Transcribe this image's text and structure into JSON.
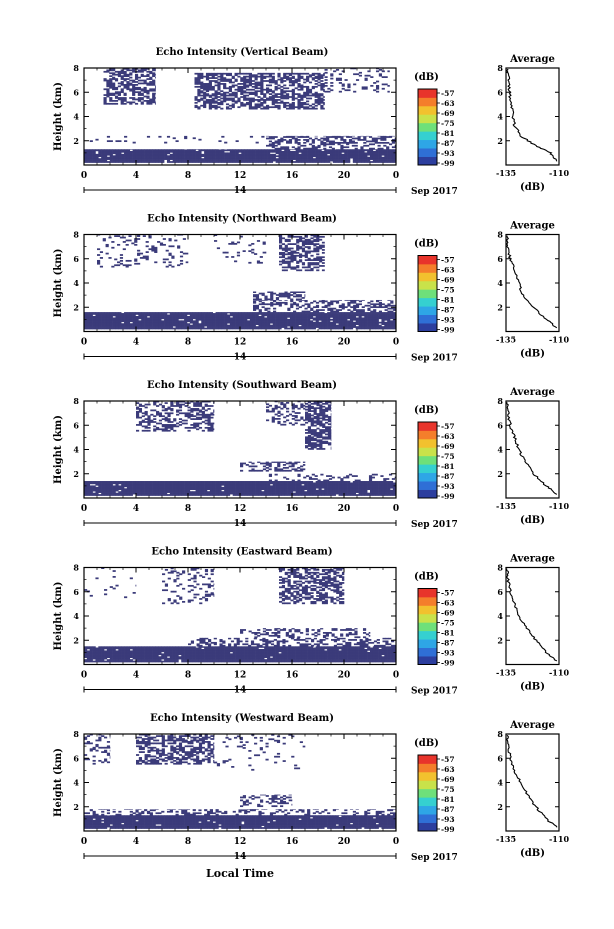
{
  "figure": {
    "x_axis_title": "Local Time",
    "date_label": "Sep 2017",
    "day_label": "14",
    "y_axis_title": "Height (km)",
    "avg_title": "Average",
    "avg_xlabel": "(dB)",
    "colorbar_unit": "(dB)"
  },
  "colors": {
    "echo": "#3b3b7a",
    "colormap": [
      "#2c3e9e",
      "#2f6fd6",
      "#2ea6e6",
      "#35d0d0",
      "#6ee07a",
      "#c9e24a",
      "#f2c12e",
      "#f47e2b",
      "#e8342b"
    ]
  },
  "chart_data": [
    {
      "type": "heatmap",
      "title": "Echo Intensity (Vertical Beam)",
      "xlabel": "",
      "ylabel": "Height (km)",
      "xlim": [
        0,
        24
      ],
      "ylim": [
        0,
        8
      ],
      "xticks": [
        "0",
        "4",
        "8",
        "12",
        "16",
        "20",
        "0"
      ],
      "yticks": [
        "2",
        "4",
        "6",
        "8"
      ],
      "colorbar": {
        "label": "(dB)",
        "ticks": [
          "-57",
          "-63",
          "-69",
          "-75",
          "-81",
          "-87",
          "-93",
          "-99"
        ]
      },
      "average": {
        "title": "Average",
        "xlabel": "(dB)",
        "xlim": [
          -135,
          -110
        ],
        "xticks": [
          "-135",
          "-110"
        ],
        "ylim": [
          0,
          8
        ],
        "yticks": [
          "2",
          "4",
          "6",
          "8"
        ],
        "profile": [
          [
            -111,
            0.3
          ],
          [
            -114,
            1.0
          ],
          [
            -121,
            1.6
          ],
          [
            -128,
            2.4
          ],
          [
            -131,
            3.3
          ],
          [
            -132,
            4.5
          ],
          [
            -133,
            5.5
          ],
          [
            -133.5,
            6.5
          ],
          [
            -134,
            7.5
          ],
          [
            -134.5,
            7.9
          ]
        ]
      },
      "echo_regions": [
        {
          "height": [
            0.2,
            1.3
          ],
          "time": [
            0,
            24
          ],
          "density": 0.97
        },
        {
          "height": [
            1.3,
            2.4
          ],
          "time": [
            14,
            24
          ],
          "density": 0.45
        },
        {
          "height": [
            1.8,
            2.4
          ],
          "time": [
            0,
            14
          ],
          "density": 0.08
        },
        {
          "height": [
            5.0,
            8.0
          ],
          "time": [
            1.5,
            5.5
          ],
          "density": 0.55
        },
        {
          "height": [
            4.6,
            7.6
          ],
          "time": [
            8.5,
            18.5
          ],
          "density": 0.6
        },
        {
          "height": [
            6.0,
            8.0
          ],
          "time": [
            18.5,
            23.5
          ],
          "density": 0.2
        }
      ]
    },
    {
      "type": "heatmap",
      "title": "Echo Intensity (Northward Beam)",
      "xlabel": "",
      "ylabel": "Height (km)",
      "xlim": [
        0,
        24
      ],
      "ylim": [
        0,
        8
      ],
      "xticks": [
        "0",
        "4",
        "8",
        "12",
        "16",
        "20",
        "0"
      ],
      "yticks": [
        "2",
        "4",
        "6",
        "8"
      ],
      "colorbar": {
        "label": "(dB)",
        "ticks": [
          "-57",
          "-63",
          "-69",
          "-75",
          "-81",
          "-87",
          "-93",
          "-99"
        ]
      },
      "average": {
        "title": "Average",
        "xlabel": "(dB)",
        "xlim": [
          -135,
          -110
        ],
        "xticks": [
          "-135",
          "-110"
        ],
        "ylim": [
          0,
          8
        ],
        "yticks": [
          "2",
          "4",
          "6",
          "8"
        ],
        "profile": [
          [
            -111,
            0.3
          ],
          [
            -116,
            1.0
          ],
          [
            -122,
            2.0
          ],
          [
            -127,
            3.0
          ],
          [
            -129,
            4.0
          ],
          [
            -131,
            5.0
          ],
          [
            -133,
            6.0
          ],
          [
            -134,
            7.0
          ],
          [
            -134.5,
            7.9
          ]
        ]
      },
      "echo_regions": [
        {
          "height": [
            0.2,
            1.6
          ],
          "time": [
            0,
            24
          ],
          "density": 0.97
        },
        {
          "height": [
            1.6,
            2.6
          ],
          "time": [
            13,
            24
          ],
          "density": 0.4
        },
        {
          "height": [
            2.6,
            3.3
          ],
          "time": [
            13,
            17
          ],
          "density": 0.55
        },
        {
          "height": [
            5.3,
            8.0
          ],
          "time": [
            1,
            8
          ],
          "density": 0.15
        },
        {
          "height": [
            5.0,
            8.0
          ],
          "time": [
            15,
            18.5
          ],
          "density": 0.5
        },
        {
          "height": [
            5.5,
            8.0
          ],
          "time": [
            10,
            14
          ],
          "density": 0.1
        }
      ]
    },
    {
      "type": "heatmap",
      "title": "Echo Intensity (Southward Beam)",
      "xlabel": "",
      "ylabel": "Height (km)",
      "xlim": [
        0,
        24
      ],
      "ylim": [
        0,
        8
      ],
      "xticks": [
        "0",
        "4",
        "8",
        "12",
        "16",
        "20",
        "0"
      ],
      "yticks": [
        "2",
        "4",
        "6",
        "8"
      ],
      "colorbar": {
        "label": "(dB)",
        "ticks": [
          "-57",
          "-63",
          "-69",
          "-75",
          "-81",
          "-87",
          "-93",
          "-99"
        ]
      },
      "average": {
        "title": "Average",
        "xlabel": "(dB)",
        "xlim": [
          -135,
          -110
        ],
        "xticks": [
          "-135",
          "-110"
        ],
        "ylim": [
          0,
          8
        ],
        "yticks": [
          "2",
          "4",
          "6",
          "8"
        ],
        "profile": [
          [
            -111,
            0.3
          ],
          [
            -116,
            1.0
          ],
          [
            -122,
            2.0
          ],
          [
            -126,
            3.0
          ],
          [
            -129,
            4.0
          ],
          [
            -131,
            5.0
          ],
          [
            -133,
            6.0
          ],
          [
            -134,
            7.0
          ],
          [
            -134.5,
            7.9
          ]
        ]
      },
      "echo_regions": [
        {
          "height": [
            0.2,
            1.4
          ],
          "time": [
            0,
            24
          ],
          "density": 0.97
        },
        {
          "height": [
            1.4,
            2.0
          ],
          "time": [
            14,
            24
          ],
          "density": 0.25
        },
        {
          "height": [
            2.2,
            3.0
          ],
          "time": [
            12,
            17
          ],
          "density": 0.45
        },
        {
          "height": [
            5.5,
            8.0
          ],
          "time": [
            4,
            10
          ],
          "density": 0.45
        },
        {
          "height": [
            4.0,
            8.0
          ],
          "time": [
            17,
            19
          ],
          "density": 0.7
        },
        {
          "height": [
            6.0,
            8.0
          ],
          "time": [
            14,
            17
          ],
          "density": 0.35
        }
      ]
    },
    {
      "type": "heatmap",
      "title": "Echo Intensity (Eastward Beam)",
      "xlabel": "",
      "ylabel": "Height (km)",
      "xlim": [
        0,
        24
      ],
      "ylim": [
        0,
        8
      ],
      "xticks": [
        "0",
        "4",
        "8",
        "12",
        "16",
        "20",
        "0"
      ],
      "yticks": [
        "2",
        "4",
        "6",
        "8"
      ],
      "colorbar": {
        "label": "(dB)",
        "ticks": [
          "-57",
          "-63",
          "-69",
          "-75",
          "-81",
          "-87",
          "-93",
          "-99"
        ]
      },
      "average": {
        "title": "Average",
        "xlabel": "(dB)",
        "xlim": [
          -135,
          -110
        ],
        "xticks": [
          "-135",
          "-110"
        ],
        "ylim": [
          0,
          8
        ],
        "yticks": [
          "2",
          "4",
          "6",
          "8"
        ],
        "profile": [
          [
            -111,
            0.3
          ],
          [
            -116,
            1.0
          ],
          [
            -121,
            2.0
          ],
          [
            -125,
            3.0
          ],
          [
            -129,
            4.0
          ],
          [
            -131,
            5.0
          ],
          [
            -133,
            6.0
          ],
          [
            -134,
            7.0
          ],
          [
            -134.5,
            7.9
          ]
        ]
      },
      "echo_regions": [
        {
          "height": [
            0.2,
            1.5
          ],
          "time": [
            0,
            24
          ],
          "density": 0.97
        },
        {
          "height": [
            1.5,
            2.2
          ],
          "time": [
            8,
            24
          ],
          "density": 0.4
        },
        {
          "height": [
            2.2,
            3.0
          ],
          "time": [
            12,
            22
          ],
          "density": 0.35
        },
        {
          "height": [
            5.0,
            8.0
          ],
          "time": [
            15,
            20
          ],
          "density": 0.55
        },
        {
          "height": [
            5.0,
            8.0
          ],
          "time": [
            6,
            10
          ],
          "density": 0.2
        },
        {
          "height": [
            5.5,
            8.0
          ],
          "time": [
            0,
            4
          ],
          "density": 0.05
        }
      ]
    },
    {
      "type": "heatmap",
      "title": "Echo Intensity (Westward Beam)",
      "xlabel": "Local Time",
      "ylabel": "Height (km)",
      "xlim": [
        0,
        24
      ],
      "ylim": [
        0,
        8
      ],
      "xticks": [
        "0",
        "4",
        "8",
        "12",
        "16",
        "20",
        "0"
      ],
      "yticks": [
        "2",
        "4",
        "6",
        "8"
      ],
      "colorbar": {
        "label": "(dB)",
        "ticks": [
          "-57",
          "-63",
          "-69",
          "-75",
          "-81",
          "-87",
          "-93",
          "-99"
        ]
      },
      "average": {
        "title": "Average",
        "xlabel": "(dB)",
        "xlim": [
          -135,
          -110
        ],
        "xticks": [
          "-135",
          "-110"
        ],
        "ylim": [
          0,
          8
        ],
        "yticks": [
          "2",
          "4",
          "6",
          "8"
        ],
        "profile": [
          [
            -111,
            0.3
          ],
          [
            -116,
            1.0
          ],
          [
            -121,
            2.0
          ],
          [
            -125,
            3.0
          ],
          [
            -128,
            4.0
          ],
          [
            -131,
            5.0
          ],
          [
            -133,
            6.0
          ],
          [
            -134,
            7.0
          ],
          [
            -134.5,
            7.9
          ]
        ]
      },
      "echo_regions": [
        {
          "height": [
            0.2,
            1.3
          ],
          "time": [
            0,
            24
          ],
          "density": 0.97
        },
        {
          "height": [
            1.3,
            1.8
          ],
          "time": [
            0,
            24
          ],
          "density": 0.35
        },
        {
          "height": [
            2.0,
            3.0
          ],
          "time": [
            12,
            16
          ],
          "density": 0.35
        },
        {
          "height": [
            5.5,
            8.0
          ],
          "time": [
            4,
            10
          ],
          "density": 0.55
        },
        {
          "height": [
            5.0,
            8.0
          ],
          "time": [
            10,
            17
          ],
          "density": 0.08
        },
        {
          "height": [
            5.5,
            8.0
          ],
          "time": [
            0,
            2
          ],
          "density": 0.2
        }
      ]
    }
  ]
}
